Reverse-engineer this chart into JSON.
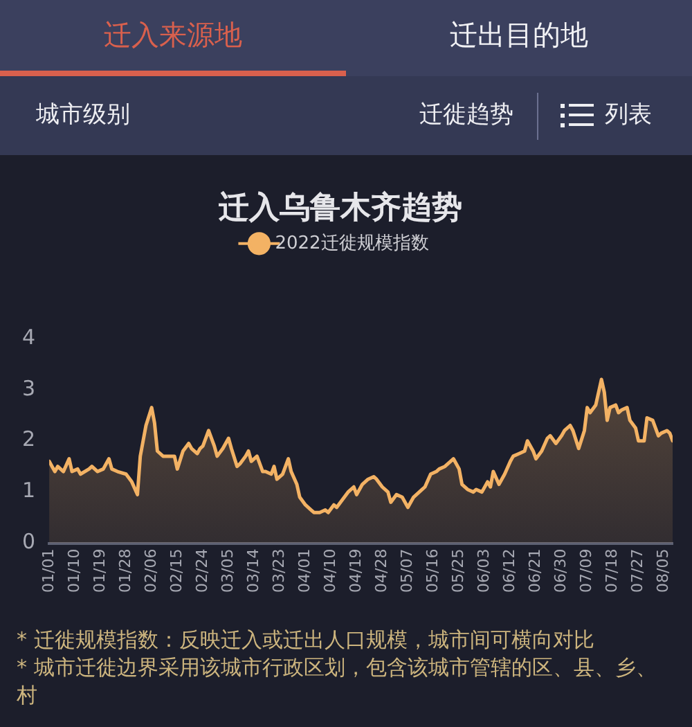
{
  "chart_data": {
    "type": "area",
    "title": "迁入乌鲁木齐趋势",
    "x": [
      "--01-01",
      "--01-02",
      "--01-03",
      "--01-04",
      "--01-06",
      "--01-08",
      "--01-09",
      "--01-11",
      "--01-12",
      "--01-15",
      "--01-16",
      "--01-18",
      "--01-20",
      "--01-22",
      "--01-23",
      "--01-25",
      "--01-28",
      "--01-30",
      "--02-01",
      "--02-02",
      "--02-04",
      "--02-06",
      "--02-07",
      "--02-08",
      "--02-10",
      "--02-12",
      "--02-14",
      "--02-15",
      "--02-17",
      "--02-19",
      "--02-20",
      "--02-22",
      "--02-23",
      "--02-24",
      "--02-26",
      "--02-28",
      "--03-01",
      "--03-03",
      "--03-05",
      "--03-06",
      "--03-08",
      "--03-09",
      "--03-11",
      "--03-12",
      "--03-13",
      "--03-15",
      "--03-17",
      "--03-18",
      "--03-20",
      "--03-21",
      "--03-22",
      "--03-24",
      "--03-26",
      "--03-27",
      "--03-29",
      "--03-30",
      "--04-01",
      "--04-03",
      "--04-04",
      "--04-06",
      "--04-08",
      "--04-09",
      "--04-11",
      "--04-12",
      "--04-14",
      "--04-16",
      "--04-18",
      "--04-19",
      "--04-21",
      "--04-23",
      "--04-25",
      "--04-26",
      "--04-28",
      "--04-30",
      "--05-01",
      "--05-03",
      "--05-05",
      "--05-07",
      "--05-09",
      "--05-10",
      "--05-12",
      "--05-13",
      "--05-15",
      "--05-17",
      "--05-18",
      "--05-20",
      "--05-22",
      "--05-23",
      "--05-25",
      "--05-26",
      "--05-28",
      "--05-30",
      "--05-31",
      "--06-02",
      "--06-04",
      "--06-05",
      "--06-06",
      "--06-08",
      "--06-10",
      "--06-12",
      "--06-13",
      "--06-15",
      "--06-17",
      "--06-18",
      "--06-20",
      "--06-21",
      "--06-23",
      "--06-25",
      "--06-26",
      "--06-28",
      "--06-30",
      "--07-01",
      "--07-03",
      "--07-04",
      "--07-06",
      "--07-08",
      "--07-09",
      "--07-10",
      "--07-12",
      "--07-14",
      "--07-15",
      "--07-16",
      "--07-17",
      "--07-19",
      "--07-20",
      "--07-21",
      "--07-23",
      "--07-24",
      "--07-26",
      "--07-27",
      "--07-29",
      "--07-30",
      "--08-01",
      "--08-03",
      "--08-04",
      "--08-06",
      "--08-07",
      "--08-08"
    ],
    "series": [
      {
        "name": "2022迁徙规模指数",
        "color": "#f3b264",
        "values": [
          1.6,
          1.5,
          1.4,
          1.5,
          1.4,
          1.65,
          1.4,
          1.45,
          1.35,
          1.45,
          1.5,
          1.4,
          1.45,
          1.65,
          1.45,
          1.4,
          1.35,
          1.2,
          0.95,
          1.7,
          2.3,
          2.65,
          2.35,
          1.8,
          1.7,
          1.7,
          1.7,
          1.45,
          1.8,
          1.95,
          1.85,
          1.75,
          1.85,
          1.9,
          2.2,
          1.9,
          1.7,
          1.85,
          2.05,
          1.85,
          1.5,
          1.55,
          1.7,
          1.8,
          1.6,
          1.7,
          1.4,
          1.4,
          1.35,
          1.5,
          1.25,
          1.35,
          1.65,
          1.4,
          1.15,
          0.9,
          0.75,
          0.65,
          0.6,
          0.6,
          0.65,
          0.6,
          0.75,
          0.7,
          0.85,
          1.0,
          1.1,
          0.95,
          1.15,
          1.25,
          1.3,
          1.25,
          1.1,
          1.0,
          0.8,
          0.95,
          0.9,
          0.7,
          0.9,
          0.95,
          1.05,
          1.1,
          1.35,
          1.4,
          1.45,
          1.5,
          1.6,
          1.65,
          1.45,
          1.15,
          1.05,
          1.0,
          1.05,
          1.0,
          1.2,
          1.1,
          1.4,
          1.15,
          1.35,
          1.6,
          1.7,
          1.75,
          1.8,
          2.0,
          1.8,
          1.65,
          1.8,
          2.05,
          2.1,
          1.95,
          2.1,
          2.2,
          2.3,
          2.2,
          1.85,
          2.2,
          2.65,
          2.55,
          2.7,
          3.2,
          2.95,
          2.4,
          2.65,
          2.7,
          2.55,
          2.6,
          2.65,
          2.4,
          2.25,
          2.0,
          2.0,
          2.45,
          2.4,
          2.1,
          2.15,
          2.2,
          2.15,
          2.0
        ]
      }
    ],
    "xlim": [
      "--01-01",
      "--08-08"
    ],
    "xticks": [
      {
        "value": "--01-01",
        "label": "01/01"
      },
      {
        "value": "--01-10",
        "label": "01/10"
      },
      {
        "value": "--01-19",
        "label": "01/19"
      },
      {
        "value": "--01-28",
        "label": "01/28"
      },
      {
        "value": "--02-06",
        "label": "02/06"
      },
      {
        "value": "--02-15",
        "label": "02/15"
      },
      {
        "value": "--02-24",
        "label": "02/24"
      },
      {
        "value": "--03-05",
        "label": "03/05"
      },
      {
        "value": "--03-14",
        "label": "03/14"
      },
      {
        "value": "--03-23",
        "label": "03/23"
      },
      {
        "value": "--04-01",
        "label": "04/01"
      },
      {
        "value": "--04-10",
        "label": "04/10"
      },
      {
        "value": "--04-19",
        "label": "04/19"
      },
      {
        "value": "--04-28",
        "label": "04/28"
      },
      {
        "value": "--05-07",
        "label": "05/07"
      },
      {
        "value": "--05-16",
        "label": "05/16"
      },
      {
        "value": "--05-25",
        "label": "05/25"
      },
      {
        "value": "--06-03",
        "label": "06/03"
      },
      {
        "value": "--06-12",
        "label": "06/12"
      },
      {
        "value": "--06-21",
        "label": "06/21"
      },
      {
        "value": "--06-30",
        "label": "06/30"
      },
      {
        "value": "--07-09",
        "label": "07/09"
      },
      {
        "value": "--07-18",
        "label": "07/18"
      },
      {
        "value": "--07-27",
        "label": "07/27"
      },
      {
        "value": "--08-05",
        "label": "08/05"
      }
    ],
    "ylim": [
      0,
      4
    ],
    "yticks": [
      0,
      1,
      2,
      3,
      4
    ],
    "grid": false,
    "legend": "top",
    "marker": "none",
    "annotations": [
      "迁入来源地",
      "迁出目的地",
      "城市级别",
      "迁徙趋势",
      "列表",
      "* 迁徙规模指数：反映迁入或迁出人口规模，城市间可横向对比",
      "* 城市迁徙边界采用该城市行政区划，包含该城市管辖的区、县、乡、村"
    ]
  }
}
